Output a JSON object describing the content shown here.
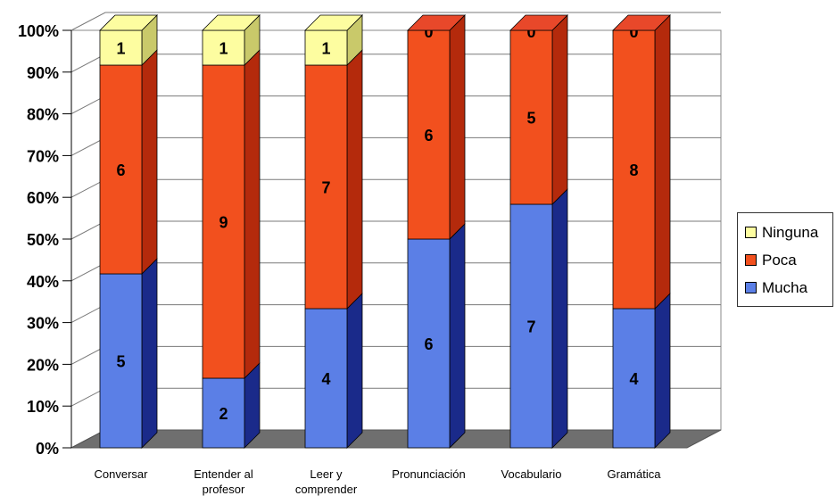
{
  "chart_data": {
    "type": "bar",
    "stacked": "percent",
    "three_d": true,
    "categories": [
      "Conversar",
      "Entender al profesor",
      "Leer y comprender",
      "Pronunciación",
      "Vocabulario",
      "Gramática"
    ],
    "series": [
      {
        "name": "Mucha",
        "values": [
          5,
          2,
          4,
          6,
          7,
          4
        ],
        "color": "#5b7fe6"
      },
      {
        "name": "Poca",
        "values": [
          6,
          9,
          7,
          6,
          5,
          8
        ],
        "color": "#f2501e"
      },
      {
        "name": "Ninguna",
        "values": [
          1,
          1,
          1,
          0,
          0,
          0
        ],
        "color": "#fdfda0"
      }
    ],
    "yticks": [
      "0%",
      "10%",
      "20%",
      "30%",
      "40%",
      "50%",
      "60%",
      "70%",
      "80%",
      "90%",
      "100%"
    ],
    "ylim": [
      0,
      100
    ],
    "grid": true,
    "legend_position": "right",
    "title": "",
    "xlabel": "",
    "ylabel": ""
  },
  "legend": {
    "items": [
      {
        "label": "Ninguna",
        "color": "#fdfda0"
      },
      {
        "label": "Poca",
        "color": "#f2501e"
      },
      {
        "label": "Mucha",
        "color": "#5b7fe6"
      }
    ]
  }
}
